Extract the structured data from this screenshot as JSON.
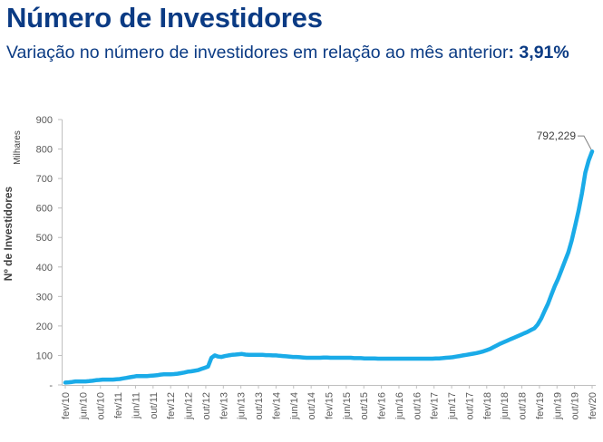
{
  "header": {
    "title": "Número de Investidores",
    "subtitle_text": "Variação no número de investidores em relação ao mês anterior",
    "subtitle_value": ": 3,91%"
  },
  "chart_data": {
    "type": "line",
    "title": "Número de Investidores",
    "subtitle": "Variação no número de investidores em relação ao mês anterior: 3,91%",
    "ylabel": "Nº de Investidores",
    "yunit": "Milhares",
    "xlabel": "",
    "ylim": [
      0,
      900
    ],
    "yticks": [
      0,
      100,
      200,
      300,
      400,
      500,
      600,
      700,
      800,
      900
    ],
    "ytick_labels": [
      "-",
      "100",
      "200",
      "300",
      "400",
      "500",
      "600",
      "700",
      "800",
      "900"
    ],
    "x_tick_labels": [
      "fev/10",
      "jun/10",
      "out/10",
      "fev/11",
      "jun/11",
      "out/11",
      "fev/12",
      "jun/12",
      "out/12",
      "fev/13",
      "jun/13",
      "out/13",
      "fev/14",
      "jun/14",
      "out/14",
      "fev/15",
      "jun/15",
      "out/15",
      "fev/16",
      "jun/16",
      "out/16",
      "fev/17",
      "jun/17",
      "out/17",
      "fev/18",
      "jun/18",
      "out/18",
      "fev/19",
      "jun/19",
      "out/19",
      "fev/20"
    ],
    "grid": false,
    "line_color": "#1aabe8",
    "series": [
      {
        "values": [
          8,
          9,
          10,
          12,
          12,
          12,
          12,
          13,
          14,
          16,
          17,
          18,
          18,
          18,
          18,
          19,
          20,
          22,
          24,
          26,
          28,
          30,
          30,
          30,
          30,
          31,
          32,
          33,
          35,
          36,
          36,
          36,
          37,
          38,
          40,
          42,
          45,
          46,
          48,
          50,
          54,
          58,
          62,
          92,
          100,
          96,
          95,
          98,
          100,
          102,
          103,
          104,
          105,
          103,
          102,
          102,
          102,
          102,
          102,
          101,
          101,
          100,
          100,
          99,
          98,
          97,
          96,
          95,
          95,
          94,
          93,
          92,
          92,
          92,
          92,
          92,
          93,
          93,
          92,
          92,
          92,
          92,
          92,
          92,
          92,
          91,
          91,
          91,
          90,
          90,
          90,
          90,
          89,
          89,
          89,
          89,
          89,
          89,
          89,
          89,
          89,
          89,
          89,
          89,
          89,
          89,
          89,
          89,
          89,
          90,
          90,
          91,
          92,
          93,
          94,
          96,
          98,
          100,
          102,
          104,
          106,
          108,
          111,
          114,
          118,
          122,
          128,
          134,
          140,
          145,
          150,
          155,
          160,
          165,
          170,
          175,
          180,
          186,
          192,
          205,
          225,
          250,
          275,
          305,
          335,
          360,
          390,
          420,
          450,
          490,
          540,
          590,
          650,
          720,
          762,
          792
        ]
      }
    ],
    "annotations": [
      {
        "text": "792,229",
        "x": "fev/20",
        "y": 792.229
      }
    ]
  }
}
